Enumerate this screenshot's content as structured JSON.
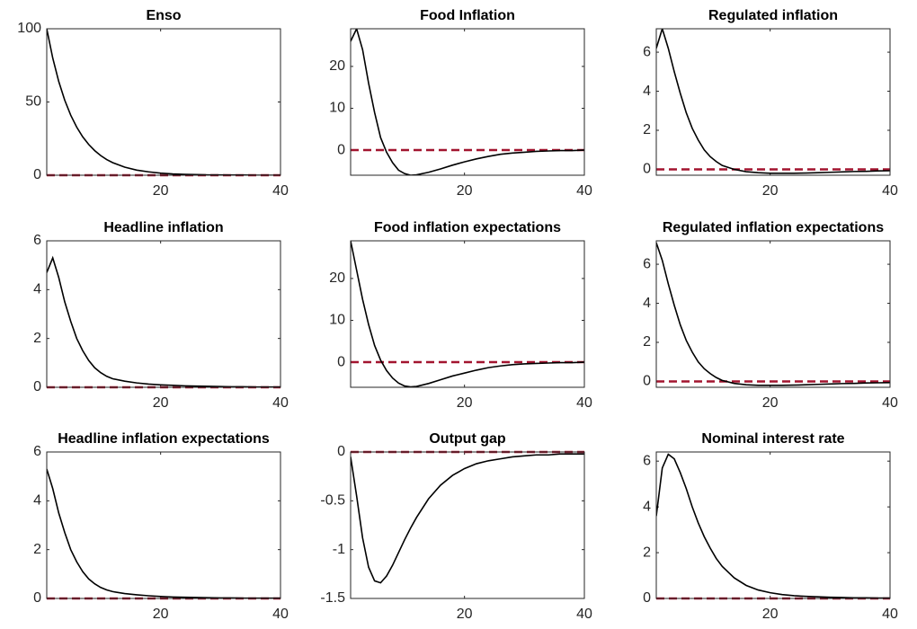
{
  "chart_data": [
    {
      "type": "line",
      "title": "Enso",
      "x": [
        1,
        2,
        3,
        4,
        5,
        6,
        7,
        8,
        9,
        10,
        11,
        12,
        14,
        16,
        18,
        20,
        22,
        24,
        26,
        28,
        30,
        32,
        34,
        36,
        38,
        40
      ],
      "xlim": [
        1,
        40
      ],
      "xticks": [
        20,
        40
      ],
      "ylim": [
        0,
        100
      ],
      "yticks": [
        0,
        50,
        100
      ],
      "series": [
        {
          "color": "#000000",
          "values": [
            100,
            80,
            64,
            51.2,
            41,
            32.8,
            26.2,
            21,
            16.8,
            13.4,
            10.7,
            8.6,
            5.5,
            3.5,
            2.3,
            1.4,
            0.9,
            0.6,
            0.4,
            0.2,
            0.2,
            0.1,
            0.1,
            0,
            0,
            0
          ]
        }
      ],
      "reference_line": {
        "value": 0,
        "color": "#a2142f",
        "style": "dashed"
      }
    },
    {
      "type": "line",
      "title": "Food Inflation",
      "x": [
        1,
        2,
        3,
        4,
        5,
        6,
        7,
        8,
        9,
        10,
        11,
        12,
        14,
        16,
        18,
        20,
        22,
        24,
        26,
        28,
        30,
        32,
        34,
        36,
        38,
        40
      ],
      "xlim": [
        1,
        40
      ],
      "xticks": [
        20,
        40
      ],
      "ylim": [
        -6,
        29
      ],
      "yticks": [
        0,
        10,
        20
      ],
      "series": [
        {
          "color": "#000000",
          "values": [
            26,
            29,
            24,
            16,
            9,
            3,
            -0.5,
            -3,
            -4.8,
            -5.6,
            -6,
            -5.9,
            -5.3,
            -4.5,
            -3.6,
            -2.8,
            -2.1,
            -1.5,
            -1,
            -0.7,
            -0.5,
            -0.3,
            -0.2,
            -0.1,
            -0.1,
            0
          ]
        }
      ],
      "reference_line": {
        "value": 0,
        "color": "#a2142f",
        "style": "dashed"
      }
    },
    {
      "type": "line",
      "title": "Regulated inflation",
      "x": [
        1,
        2,
        3,
        4,
        5,
        6,
        7,
        8,
        9,
        10,
        11,
        12,
        14,
        16,
        18,
        20,
        22,
        24,
        26,
        28,
        30,
        32,
        34,
        36,
        38,
        40
      ],
      "xlim": [
        1,
        40
      ],
      "xticks": [
        20,
        40
      ],
      "ylim": [
        -0.3,
        7.2
      ],
      "yticks": [
        0,
        2,
        4,
        6
      ],
      "series": [
        {
          "color": "#000000",
          "values": [
            6.2,
            7.2,
            6.2,
            5,
            3.9,
            2.9,
            2.1,
            1.5,
            1,
            0.65,
            0.4,
            0.2,
            0,
            -0.12,
            -0.17,
            -0.2,
            -0.2,
            -0.2,
            -0.19,
            -0.17,
            -0.15,
            -0.13,
            -0.11,
            -0.1,
            -0.08,
            -0.07
          ]
        }
      ],
      "reference_line": {
        "value": 0,
        "color": "#a2142f",
        "style": "dashed"
      }
    },
    {
      "type": "line",
      "title": "Headline inflation",
      "x": [
        1,
        2,
        3,
        4,
        5,
        6,
        7,
        8,
        9,
        10,
        11,
        12,
        14,
        16,
        18,
        20,
        22,
        24,
        26,
        28,
        30,
        32,
        34,
        36,
        38,
        40
      ],
      "xlim": [
        1,
        40
      ],
      "xticks": [
        20,
        40
      ],
      "ylim": [
        0,
        6
      ],
      "yticks": [
        0,
        2,
        4,
        6
      ],
      "series": [
        {
          "color": "#000000",
          "values": [
            4.7,
            5.3,
            4.5,
            3.5,
            2.7,
            2,
            1.5,
            1.1,
            0.8,
            0.6,
            0.45,
            0.35,
            0.25,
            0.18,
            0.13,
            0.1,
            0.08,
            0.06,
            0.05,
            0.04,
            0.03,
            0.02,
            0.02,
            0.01,
            0.01,
            0.01
          ]
        }
      ],
      "reference_line": {
        "value": 0,
        "color": "#a2142f",
        "style": "dashed"
      }
    },
    {
      "type": "line",
      "title": "Food inflation expectations",
      "x": [
        1,
        2,
        3,
        4,
        5,
        6,
        7,
        8,
        9,
        10,
        11,
        12,
        14,
        16,
        18,
        20,
        22,
        24,
        26,
        28,
        30,
        32,
        34,
        36,
        38,
        40
      ],
      "xlim": [
        1,
        40
      ],
      "xticks": [
        20,
        40
      ],
      "ylim": [
        -6,
        29
      ],
      "yticks": [
        0,
        10,
        20
      ],
      "series": [
        {
          "color": "#000000",
          "values": [
            29,
            22,
            15,
            9,
            4,
            0.5,
            -2,
            -3.8,
            -5,
            -5.7,
            -5.9,
            -5.8,
            -5.1,
            -4.2,
            -3.3,
            -2.6,
            -1.9,
            -1.3,
            -0.9,
            -0.6,
            -0.4,
            -0.3,
            -0.2,
            -0.1,
            -0.1,
            0
          ]
        }
      ],
      "reference_line": {
        "value": 0,
        "color": "#a2142f",
        "style": "dashed"
      }
    },
    {
      "type": "line",
      "title": "Regulated inflation expectations",
      "x": [
        1,
        2,
        3,
        4,
        5,
        6,
        7,
        8,
        9,
        10,
        11,
        12,
        14,
        16,
        18,
        20,
        22,
        24,
        26,
        28,
        30,
        32,
        34,
        36,
        38,
        40
      ],
      "xlim": [
        1,
        40
      ],
      "xticks": [
        20,
        40
      ],
      "ylim": [
        -0.3,
        7.2
      ],
      "yticks": [
        0,
        2,
        4,
        6
      ],
      "series": [
        {
          "color": "#000000",
          "values": [
            7.1,
            6.2,
            5,
            3.9,
            2.9,
            2.1,
            1.5,
            1,
            0.65,
            0.4,
            0.2,
            0.05,
            -0.1,
            -0.17,
            -0.2,
            -0.2,
            -0.2,
            -0.19,
            -0.17,
            -0.15,
            -0.13,
            -0.11,
            -0.1,
            -0.08,
            -0.07,
            -0.06
          ]
        }
      ],
      "reference_line": {
        "value": 0,
        "color": "#a2142f",
        "style": "dashed"
      }
    },
    {
      "type": "line",
      "title": "Headline inflation expectations",
      "x": [
        1,
        2,
        3,
        4,
        5,
        6,
        7,
        8,
        9,
        10,
        11,
        12,
        14,
        16,
        18,
        20,
        22,
        24,
        26,
        28,
        30,
        32,
        34,
        36,
        38,
        40
      ],
      "xlim": [
        1,
        40
      ],
      "xticks": [
        20,
        40
      ],
      "ylim": [
        0,
        6
      ],
      "yticks": [
        0,
        2,
        4,
        6
      ],
      "series": [
        {
          "color": "#000000",
          "values": [
            5.3,
            4.5,
            3.5,
            2.7,
            2,
            1.5,
            1.1,
            0.8,
            0.6,
            0.45,
            0.35,
            0.28,
            0.2,
            0.15,
            0.11,
            0.08,
            0.06,
            0.05,
            0.04,
            0.03,
            0.02,
            0.02,
            0.01,
            0.01,
            0.01,
            0.01
          ]
        }
      ],
      "reference_line": {
        "value": 0,
        "color": "#a2142f",
        "style": "dashed"
      }
    },
    {
      "type": "line",
      "title": "Output gap",
      "x": [
        1,
        2,
        3,
        4,
        5,
        6,
        7,
        8,
        9,
        10,
        11,
        12,
        14,
        16,
        18,
        20,
        22,
        24,
        26,
        28,
        30,
        32,
        34,
        36,
        38,
        40
      ],
      "xlim": [
        1,
        40
      ],
      "xticks": [
        20,
        40
      ],
      "ylim": [
        -1.5,
        0
      ],
      "yticks": [
        -1.5,
        -1,
        -0.5,
        0
      ],
      "series": [
        {
          "color": "#000000",
          "values": [
            -0.05,
            -0.45,
            -0.88,
            -1.18,
            -1.32,
            -1.34,
            -1.27,
            -1.16,
            -1.03,
            -0.9,
            -0.78,
            -0.67,
            -0.48,
            -0.34,
            -0.24,
            -0.17,
            -0.12,
            -0.09,
            -0.07,
            -0.05,
            -0.04,
            -0.03,
            -0.03,
            -0.02,
            -0.02,
            -0.02
          ]
        }
      ],
      "reference_line": {
        "value": 0,
        "color": "#a2142f",
        "style": "dashed"
      }
    },
    {
      "type": "line",
      "title": "Nominal interest rate",
      "x": [
        1,
        2,
        3,
        4,
        5,
        6,
        7,
        8,
        9,
        10,
        11,
        12,
        14,
        16,
        18,
        20,
        22,
        24,
        26,
        28,
        30,
        32,
        34,
        36,
        38,
        40
      ],
      "xlim": [
        1,
        40
      ],
      "xticks": [
        20,
        40
      ],
      "ylim": [
        0,
        6.4
      ],
      "yticks": [
        0,
        2,
        4,
        6
      ],
      "series": [
        {
          "color": "#000000",
          "values": [
            3.6,
            5.7,
            6.3,
            6.1,
            5.5,
            4.8,
            4,
            3.3,
            2.7,
            2.2,
            1.75,
            1.4,
            0.9,
            0.57,
            0.37,
            0.25,
            0.17,
            0.12,
            0.09,
            0.07,
            0.05,
            0.04,
            0.03,
            0.03,
            0.02,
            0.02
          ]
        }
      ],
      "reference_line": {
        "value": 0,
        "color": "#a2142f",
        "style": "dashed"
      }
    }
  ]
}
